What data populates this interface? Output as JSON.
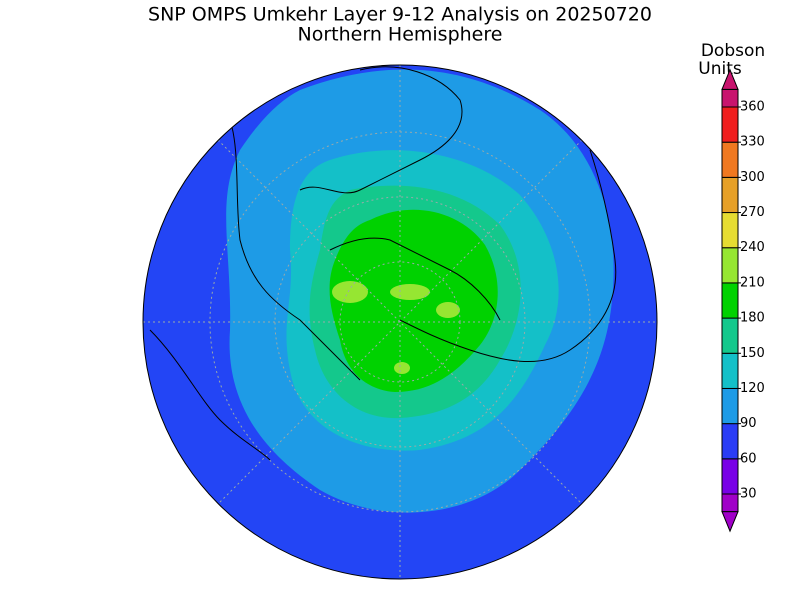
{
  "title": "SNP OMPS Umkehr Layer 9-12 Analysis on 20250720",
  "subtitle": "Northern Hemisphere",
  "colorbar": {
    "label": [
      "Dobson",
      "Units"
    ],
    "ticks": [
      30,
      60,
      90,
      120,
      150,
      180,
      210,
      240,
      270,
      300,
      330,
      360
    ],
    "colors": [
      "#a000c8",
      "#7800e6",
      "#2a3cf5",
      "#1e9be6",
      "#14c0c8",
      "#14c88c",
      "#00d200",
      "#96e632",
      "#e6dc32",
      "#e6a028",
      "#f07820",
      "#f01e1e",
      "#c8146e"
    ]
  }
}
